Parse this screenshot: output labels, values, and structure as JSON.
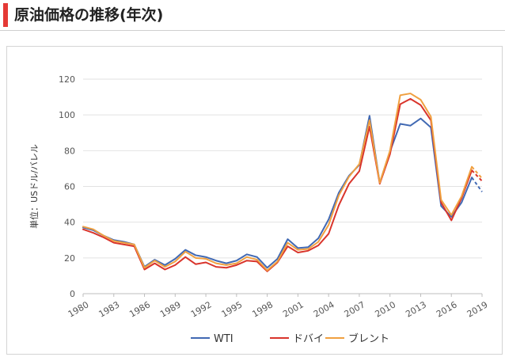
{
  "heading": {
    "title": "原油価格の推移(年次)",
    "accent_color": "#e53935"
  },
  "chart_data": {
    "type": "line",
    "title": "",
    "xlabel": "",
    "ylabel": "単位：USドル/バレル",
    "ylim": [
      0,
      120
    ],
    "yticks": [
      0,
      20,
      40,
      60,
      80,
      100,
      120
    ],
    "xlim": [
      1980,
      2019
    ],
    "xticks": [
      1980,
      1983,
      1986,
      1989,
      1992,
      1995,
      1998,
      2001,
      2004,
      2007,
      2010,
      2013,
      2016,
      2019
    ],
    "grid": true,
    "legend_position": "bottom",
    "x": [
      1980,
      1981,
      1982,
      1983,
      1984,
      1985,
      1986,
      1987,
      1988,
      1989,
      1990,
      1991,
      1992,
      1993,
      1994,
      1995,
      1996,
      1997,
      1998,
      1999,
      2000,
      2001,
      2002,
      2003,
      2004,
      2005,
      2006,
      2007,
      2008,
      2009,
      2010,
      2011,
      2012,
      2013,
      2014,
      2015,
      2016,
      2017,
      2018,
      2019
    ],
    "forecast_from_index": 38,
    "series": [
      {
        "name": "WTI",
        "color": "#4169b3",
        "values": [
          37,
          35.5,
          32.5,
          30,
          29,
          27.5,
          15,
          19,
          16,
          19.5,
          24.5,
          21.5,
          20.5,
          18.5,
          17,
          18.5,
          22,
          20.5,
          14.5,
          19.5,
          30.5,
          25.5,
          26,
          31,
          41.5,
          56.5,
          66,
          72,
          99.5,
          62,
          79.5,
          95,
          94,
          98,
          93,
          49,
          43,
          51,
          65,
          57
        ]
      },
      {
        "name": "ドバイ",
        "color": "#d9342b",
        "values": [
          36,
          34,
          31.5,
          28.5,
          27.5,
          26.5,
          13.5,
          17,
          13.5,
          16,
          20.5,
          16.5,
          17.5,
          15,
          14.5,
          16,
          18.5,
          18,
          12.5,
          17.5,
          26.5,
          23,
          24,
          27,
          33.5,
          49.5,
          61.5,
          68.5,
          93.5,
          61.5,
          78,
          106,
          109,
          105.5,
          97,
          51,
          41,
          53.5,
          69,
          63
        ]
      },
      {
        "name": "ブレント",
        "color": "#f0a040",
        "values": [
          37.5,
          36,
          32.5,
          29.5,
          28.5,
          27.5,
          14.5,
          18.5,
          15,
          18,
          23.5,
          20,
          19.5,
          17,
          16,
          17,
          20.5,
          19,
          13,
          18,
          28.5,
          24.5,
          25,
          29,
          38.5,
          55,
          65.5,
          72.5,
          97,
          62,
          80,
          111,
          112,
          108.5,
          99,
          52.5,
          44,
          54.5,
          71,
          64.5
        ]
      }
    ]
  }
}
